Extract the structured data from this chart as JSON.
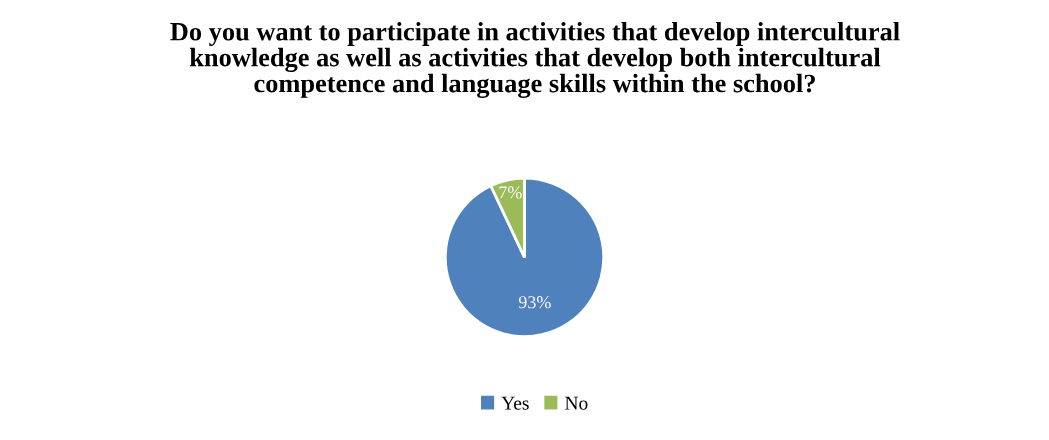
{
  "chart_data": {
    "type": "pie",
    "title": "Do you want to participate in activities that develop intercultural\nknowledge as well as activities that develop both intercultural\ncompetence and language skills within the school?",
    "categories": [
      "Yes",
      "No"
    ],
    "values": [
      93,
      7
    ],
    "colors": [
      "#4f81bd",
      "#9bbb59"
    ],
    "value_labels": [
      "93%",
      "7%"
    ],
    "legend": "bottom"
  }
}
